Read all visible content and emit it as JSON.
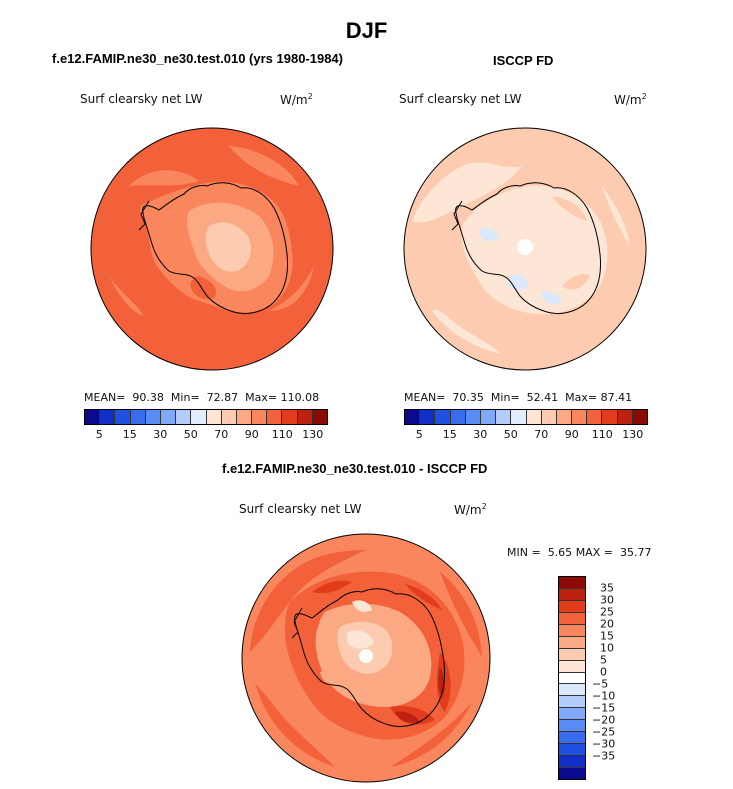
{
  "chart_data": {
    "type": "contour-map",
    "season": "DJF",
    "panels": [
      {
        "id": "model",
        "title": "f.e12.FAMIP.ne30_ne30.test.010 (yrs 1980-1984)",
        "variable": "Surf clearsky net LW",
        "units": "W/m",
        "units_exp": "2",
        "stats": {
          "mean_label": "MEAN=",
          "mean": "90.38",
          "min_label": "Min=",
          "min": "72.87",
          "max_label": "Max=",
          "max": "110.08"
        }
      },
      {
        "id": "obs",
        "title": "ISCCP FD",
        "variable": "Surf clearsky net LW",
        "units": "W/m",
        "units_exp": "2",
        "stats": {
          "mean_label": "MEAN=",
          "mean": "70.35",
          "min_label": "Min=",
          "min": "52.41",
          "max_label": "Max=",
          "max": "87.41"
        }
      },
      {
        "id": "diff",
        "title": "f.e12.FAMIP.ne30_ne30.test.010 - ISCCP FD",
        "variable": "Surf clearsky net LW",
        "units": "W/m",
        "units_exp": "2",
        "stats": {
          "min_label": "MIN =",
          "min": "5.65",
          "max_label": "MAX =",
          "max": "35.77"
        }
      }
    ],
    "field_colorbar": {
      "orientation": "horizontal",
      "colors": [
        "#0a0a8c",
        "#1230c8",
        "#2050e0",
        "#3a6cf0",
        "#5a8cf5",
        "#80aaf8",
        "#b4cdfa",
        "#e3eefc",
        "#fde6d6",
        "#fccbb0",
        "#fba982",
        "#f9865c",
        "#f3613a",
        "#e13d1c",
        "#bd2210",
        "#8c0a06"
      ],
      "tick_labels": [
        "5",
        "15",
        "30",
        "50",
        "70",
        "90",
        "110",
        "130"
      ],
      "tick_boundaries": [
        1,
        3,
        5,
        7,
        9,
        11,
        13,
        15
      ]
    },
    "diff_colorbar": {
      "orientation": "vertical",
      "colors": [
        "#8c0a06",
        "#bd2210",
        "#e13d1c",
        "#f3613a",
        "#f9865c",
        "#fba982",
        "#fccbb0",
        "#fde6d6",
        "#ffffff",
        "#dbe8fb",
        "#b4cdfa",
        "#80aaf8",
        "#5a8cf5",
        "#3a6cf0",
        "#2050e0",
        "#1230c8",
        "#0a0a8c"
      ],
      "tick_labels": [
        "35",
        "30",
        "25",
        "20",
        "15",
        "10",
        "5",
        "0",
        "−5",
        "−10",
        "−15",
        "−20",
        "−25",
        "−30",
        "−35"
      ]
    }
  }
}
